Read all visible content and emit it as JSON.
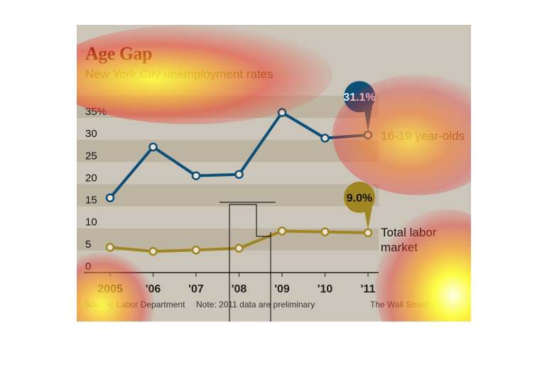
{
  "chart_data": {
    "type": "line",
    "title": "Age Gap",
    "subtitle": "New York City unemployment rates",
    "categories": [
      "2005",
      "'06",
      "'07",
      "'08",
      "'09",
      "'10",
      "'11"
    ],
    "series": [
      {
        "name": "16-19 year-olds",
        "values": [
          16.9,
          28.4,
          21.9,
          22.2,
          36.2,
          30.4,
          31.1
        ],
        "color": "#0e4f78",
        "callout": "31.1%"
      },
      {
        "name": "Total labor market",
        "values": [
          5.7,
          4.8,
          5.1,
          5.5,
          9.4,
          9.2,
          9.0
        ],
        "color": "#a08523",
        "callout": "9.0%"
      }
    ],
    "yticks": [
      "0",
      "5",
      "10",
      "15",
      "20",
      "25",
      "30",
      "35%"
    ],
    "ytick_values": [
      0,
      5,
      10,
      15,
      20,
      25,
      30,
      35
    ],
    "ylim": [
      0,
      40
    ],
    "grid": "alternating bands",
    "source": "Source: Labor Department",
    "note": "Note: 2011 data are preliminary",
    "credit": "The Wall Street Journal"
  }
}
